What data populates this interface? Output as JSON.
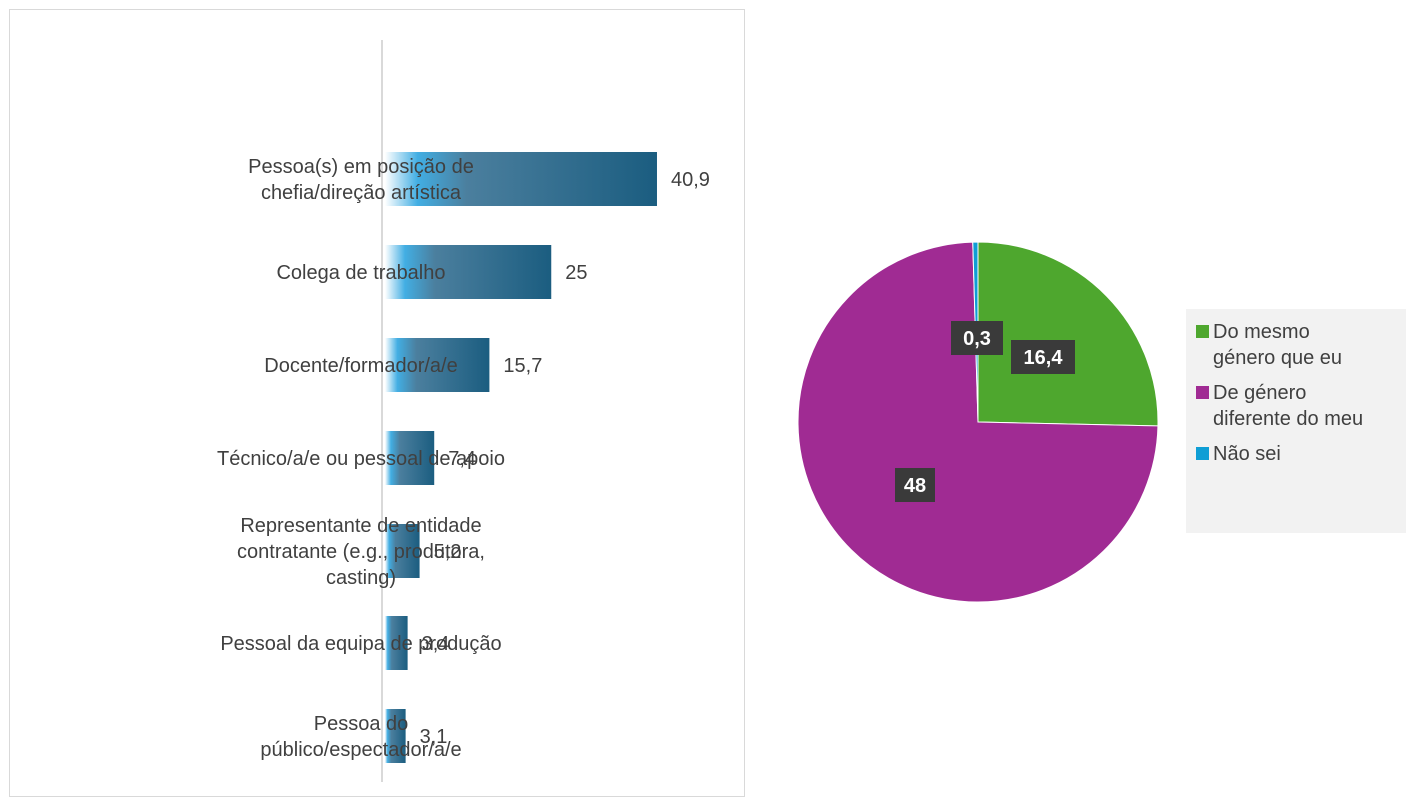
{
  "chart_data": [
    {
      "type": "bar",
      "orientation": "horizontal",
      "categories": [
        [
          "Pessoa(s) em posição de",
          "chefia/direção artística"
        ],
        [
          "Colega de trabalho"
        ],
        [
          "Docente/formador/a/e"
        ],
        [
          "Técnico/a/e ou pessoal de apoio"
        ],
        [
          "Representante de entidade",
          "contratante (e.g., produtora,",
          "casting)"
        ],
        [
          "Pessoal da equipa de produção"
        ],
        [
          "Pessoa do",
          "público/espectador/a/e"
        ]
      ],
      "values": [
        40.9,
        25,
        15.7,
        7.4,
        5.2,
        3.4,
        3.1
      ],
      "value_labels": [
        "40,9",
        "25",
        "15,7",
        "7,4",
        "5,2",
        "3,4",
        "3,1"
      ],
      "xlim": [
        0,
        50
      ],
      "grid": false,
      "bar_gradient": [
        "#ffffff",
        "#42aee3",
        "#4b7f9e",
        "#1b5d80"
      ]
    },
    {
      "type": "pie",
      "slices": [
        {
          "name": "Do mesmo género que eu",
          "value": 16.4,
          "label": "16,4",
          "color": "#4ea72e"
        },
        {
          "name": "De género diferente do meu",
          "value": 48,
          "label": "48",
          "color": "#a02b93"
        },
        {
          "name": "Não sei",
          "value": 0.3,
          "label": "0,3",
          "color": "#0f9ed5"
        }
      ],
      "legend": {
        "position": "right",
        "items": [
          {
            "lines": [
              "Do mesmo",
              "género que eu"
            ],
            "color": "#4ea72e"
          },
          {
            "lines": [
              "De género",
              "diferente do meu"
            ],
            "color": "#a02b93"
          },
          {
            "lines": [
              "Não sei"
            ],
            "color": "#0f9ed5"
          }
        ]
      }
    }
  ]
}
